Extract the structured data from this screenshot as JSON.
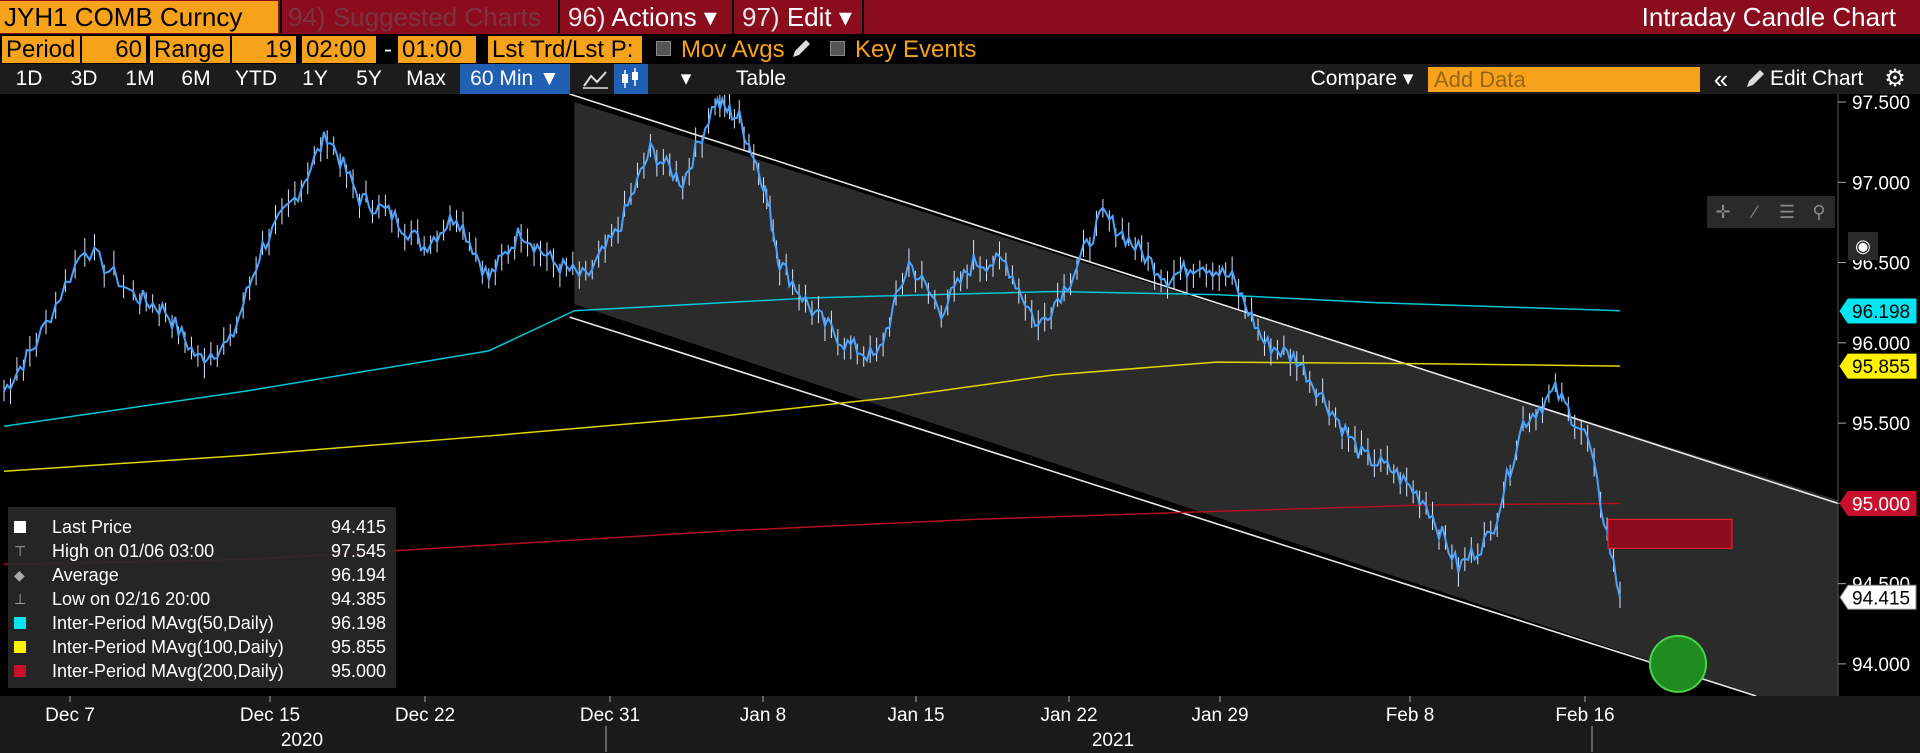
{
  "header": {
    "security": "JYH1 COMB Curncy",
    "menu": [
      {
        "num": "94)",
        "label": "Suggested Charts",
        "dim": true
      },
      {
        "num": "96)",
        "label": "Actions ▾"
      },
      {
        "num": "97)",
        "label": "Edit ▾"
      }
    ],
    "title": "Intraday Candle Chart"
  },
  "settings": {
    "period_label": "Period",
    "period_value": "60",
    "range_label": "Range",
    "range_value": "19",
    "time_from": "02:00",
    "time_dash": "-",
    "time_to": "01:00",
    "price_field": "Lst Trd/Lst P:",
    "mov_avgs": "Mov Avgs",
    "key_events": "Key Events"
  },
  "toolbar": {
    "ranges": [
      "1D",
      "3D",
      "1M",
      "6M",
      "YTD",
      "1Y",
      "5Y",
      "Max"
    ],
    "interval": "60 Min ▼",
    "table": "Table",
    "compare": "Compare ▾",
    "add_data_placeholder": "Add Data",
    "collapse": "«",
    "edit_chart": "Edit Chart"
  },
  "legend": [
    {
      "name": "Last Price",
      "value": "94.415",
      "color": "#ffffff"
    },
    {
      "name": "High on 01/06 03:00",
      "value": "97.545",
      "color": ""
    },
    {
      "name": "Average",
      "value": "96.194",
      "color": ""
    },
    {
      "name": "Low on 02/16 20:00",
      "value": "94.385",
      "color": ""
    },
    {
      "name": "Inter-Period MAvg(50,Daily)",
      "value": "96.198",
      "color": "#00e5f0"
    },
    {
      "name": "Inter-Period MAvg(100,Daily)",
      "value": "95.855",
      "color": "#fff200"
    },
    {
      "name": "Inter-Period MAvg(200,Daily)",
      "value": "95.000",
      "color": "#c8102e"
    }
  ],
  "colors": {
    "price": "#4aa3ff",
    "ma50": "#00c8d8",
    "ma100": "#e0d600",
    "ma200": "#b01020",
    "channel": "#e8e8e8",
    "target_zone": "#8b0d1d",
    "target_circle": "#1e8c1e"
  },
  "chart_data": {
    "type": "candlestick",
    "ylim": [
      93.8,
      97.55
    ],
    "yticks": [
      "97.500",
      "97.000",
      "96.500",
      "96.000",
      "95.500",
      "95.000",
      "94.500",
      "94.000"
    ],
    "xticks": [
      "Dec 7",
      "Dec 15",
      "Dec 22",
      "Dec 31",
      "Jan 8",
      "Jan 15",
      "Jan 22",
      "Jan 29",
      "Feb 8",
      "Feb 16"
    ],
    "year_labels": [
      "2020",
      "2021"
    ],
    "price_tag": "94.415",
    "ma_tags": {
      "ma50": "96.198",
      "ma100": "95.855",
      "ma200": "95.000"
    },
    "price_path": [
      [
        0,
        95.7
      ],
      [
        0.02,
        96.0
      ],
      [
        0.05,
        96.6
      ],
      [
        0.08,
        96.3
      ],
      [
        0.1,
        96.2
      ],
      [
        0.12,
        95.9
      ],
      [
        0.14,
        96.0
      ],
      [
        0.16,
        96.6
      ],
      [
        0.18,
        96.9
      ],
      [
        0.2,
        97.3
      ],
      [
        0.22,
        96.9
      ],
      [
        0.24,
        96.8
      ],
      [
        0.26,
        96.6
      ],
      [
        0.28,
        96.8
      ],
      [
        0.3,
        96.4
      ],
      [
        0.32,
        96.7
      ],
      [
        0.34,
        96.5
      ],
      [
        0.36,
        96.4
      ],
      [
        0.38,
        96.7
      ],
      [
        0.4,
        97.2
      ],
      [
        0.42,
        97.0
      ],
      [
        0.44,
        97.5
      ],
      [
        0.455,
        97.4
      ],
      [
        0.47,
        97.0
      ],
      [
        0.48,
        96.5
      ],
      [
        0.5,
        96.2
      ],
      [
        0.52,
        96.0
      ],
      [
        0.54,
        95.9
      ],
      [
        0.56,
        96.5
      ],
      [
        0.58,
        96.2
      ],
      [
        0.6,
        96.5
      ],
      [
        0.62,
        96.5
      ],
      [
        0.64,
        96.1
      ],
      [
        0.66,
        96.4
      ],
      [
        0.68,
        96.8
      ],
      [
        0.7,
        96.6
      ],
      [
        0.72,
        96.4
      ],
      [
        0.74,
        96.5
      ],
      [
        0.76,
        96.4
      ],
      [
        0.78,
        96.0
      ],
      [
        0.8,
        95.9
      ],
      [
        0.82,
        95.6
      ],
      [
        0.84,
        95.3
      ],
      [
        0.86,
        95.2
      ],
      [
        0.88,
        95.0
      ],
      [
        0.9,
        94.6
      ],
      [
        0.92,
        94.8
      ],
      [
        0.94,
        95.5
      ],
      [
        0.96,
        95.7
      ],
      [
        0.98,
        95.4
      ],
      [
        1.0,
        94.415
      ]
    ]
  }
}
